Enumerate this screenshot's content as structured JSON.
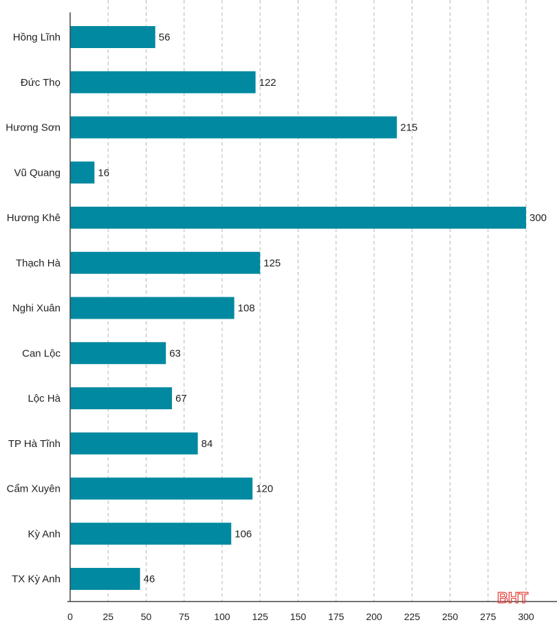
{
  "chart_data": {
    "type": "bar",
    "orientation": "horizontal",
    "categories": [
      "Hồng Lĩnh",
      "Đức Thọ",
      "Hương Sơn",
      "Vũ Quang",
      "Hương Khê",
      "Thạch Hà",
      "Nghi Xuân",
      "Can Lộc",
      "Lộc Hà",
      "TP Hà Tĩnh",
      "Cẩm Xuyên",
      "Kỳ Anh",
      "TX Kỳ Anh"
    ],
    "values": [
      56,
      122,
      215,
      16,
      300,
      125,
      108,
      63,
      67,
      84,
      120,
      106,
      46
    ],
    "title": "",
    "xlabel": "",
    "ylabel": "",
    "xlim": [
      0,
      300
    ],
    "xticks": [
      0,
      25,
      50,
      75,
      100,
      125,
      150,
      175,
      200,
      225,
      250,
      275,
      300
    ],
    "grid": "vertical-dashed",
    "legend": "none",
    "data_labels": true,
    "bar_color": "#0089a0",
    "watermark": "BHT",
    "watermark_color": "#e4473f"
  }
}
